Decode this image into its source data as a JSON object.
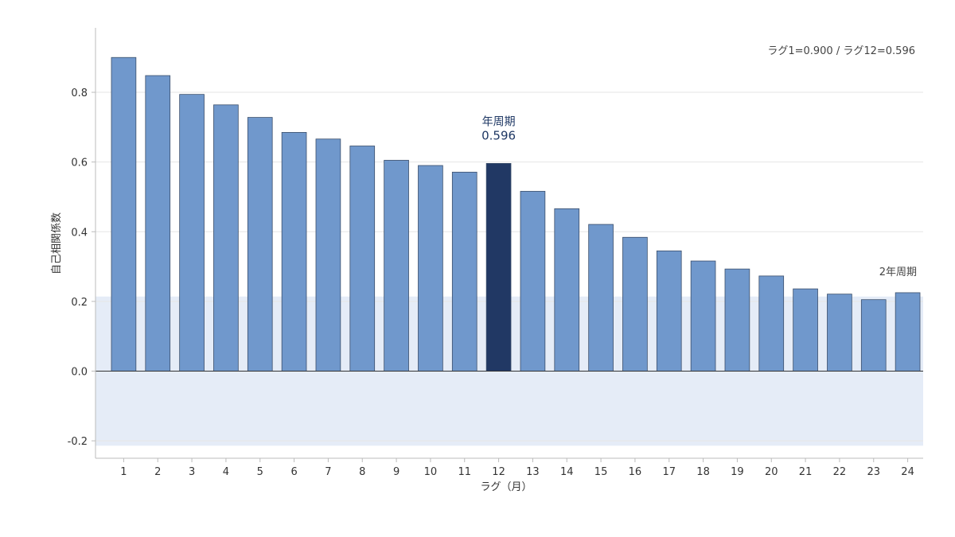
{
  "chart_data": {
    "type": "bar",
    "categories": [
      "1",
      "2",
      "3",
      "4",
      "5",
      "6",
      "7",
      "8",
      "9",
      "10",
      "11",
      "12",
      "13",
      "14",
      "15",
      "16",
      "17",
      "18",
      "19",
      "20",
      "21",
      "22",
      "23",
      "24"
    ],
    "values": [
      0.9,
      0.848,
      0.794,
      0.764,
      0.728,
      0.685,
      0.666,
      0.646,
      0.605,
      0.59,
      0.571,
      0.596,
      0.516,
      0.466,
      0.421,
      0.384,
      0.345,
      0.316,
      0.293,
      0.273,
      0.236,
      0.221,
      0.205,
      0.225
    ],
    "xlabel": "ラグ（月）",
    "ylabel": "自己相関係数",
    "ylim": [
      -0.25,
      0.985
    ],
    "yticks": [
      -0.2,
      0.0,
      0.2,
      0.4,
      0.6,
      0.8
    ],
    "ytick_labels": [
      "-0.2",
      "0.0",
      "0.2",
      "0.4",
      "0.6",
      "0.8"
    ],
    "confidence_band": [
      -0.214,
      0.214
    ],
    "grid": true,
    "highlight_lag": 12,
    "colors": {
      "bar": "#7098cc",
      "bar_highlight": "#213864",
      "bar_edge": "#3b4f6b",
      "band": "#e5ecf7",
      "grid": "#e6e6e6",
      "axis": "#bbbbbb",
      "zero_line": "#333333"
    },
    "annotations": {
      "summary": "ラグ1=0.900 / ラグ12=0.596",
      "peak_label": "年周期",
      "peak_value": "0.596",
      "second_label": "2年周期"
    }
  }
}
